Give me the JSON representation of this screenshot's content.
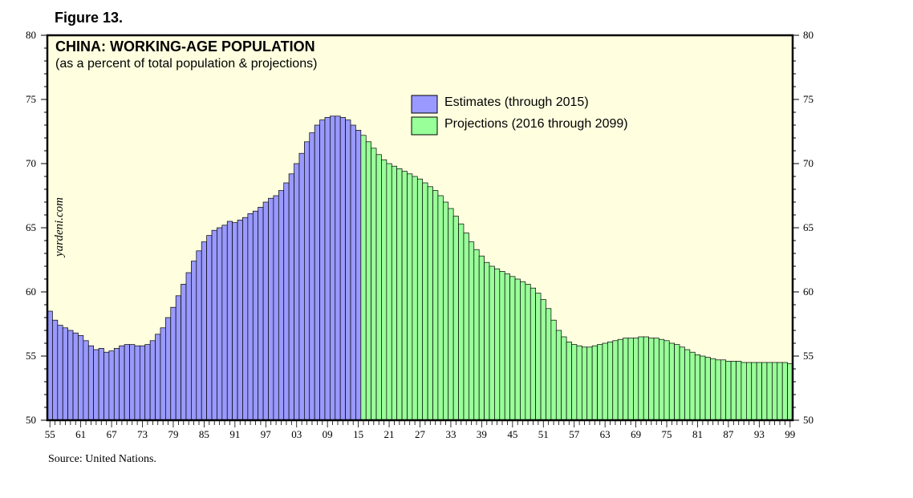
{
  "figure_label": "Figure 13.",
  "source_note": "Source: United Nations.",
  "watermark": "yardeni.com",
  "colors": {
    "background": "#ffffe0",
    "estimates": "#9999ff",
    "projections": "#99ff99",
    "bar_outline": "#000000"
  },
  "chart_data": {
    "type": "bar",
    "title": "CHINA: WORKING-AGE POPULATION",
    "subtitle": "(as a percent of total population & projections)",
    "ylim": [
      50,
      80
    ],
    "y_ticks": [
      50,
      55,
      60,
      65,
      70,
      75,
      80
    ],
    "x_range": [
      1955,
      2099
    ],
    "x_tick_labels": [
      "55",
      "61",
      "67",
      "73",
      "79",
      "85",
      "91",
      "97",
      "03",
      "09",
      "15",
      "21",
      "27",
      "33",
      "39",
      "45",
      "51",
      "57",
      "63",
      "69",
      "75",
      "81",
      "87",
      "93",
      "99"
    ],
    "legend_position": "top-center",
    "series": [
      {
        "name": "Estimates (through 2015)",
        "color": "#9999ff",
        "x": [
          1955,
          1956,
          1957,
          1958,
          1959,
          1960,
          1961,
          1962,
          1963,
          1964,
          1965,
          1966,
          1967,
          1968,
          1969,
          1970,
          1971,
          1972,
          1973,
          1974,
          1975,
          1976,
          1977,
          1978,
          1979,
          1980,
          1981,
          1982,
          1983,
          1984,
          1985,
          1986,
          1987,
          1988,
          1989,
          1990,
          1991,
          1992,
          1993,
          1994,
          1995,
          1996,
          1997,
          1998,
          1999,
          2000,
          2001,
          2002,
          2003,
          2004,
          2005,
          2006,
          2007,
          2008,
          2009,
          2010,
          2011,
          2012,
          2013,
          2014,
          2015
        ],
        "values": [
          58.5,
          57.8,
          57.4,
          57.2,
          57.0,
          56.8,
          56.6,
          56.2,
          55.8,
          55.5,
          55.6,
          55.3,
          55.4,
          55.6,
          55.8,
          55.9,
          55.9,
          55.8,
          55.8,
          55.9,
          56.2,
          56.7,
          57.2,
          58.0,
          58.8,
          59.7,
          60.6,
          61.5,
          62.4,
          63.2,
          63.9,
          64.4,
          64.8,
          65.0,
          65.2,
          65.5,
          65.4,
          65.6,
          65.8,
          66.1,
          66.3,
          66.6,
          67.0,
          67.3,
          67.5,
          67.9,
          68.5,
          69.2,
          70.0,
          70.8,
          71.7,
          72.4,
          73.0,
          73.4,
          73.6,
          73.7,
          73.7,
          73.6,
          73.4,
          73.0,
          72.6
        ],
        "stroke_on_right": "#9999ff"
      },
      {
        "name": "Projections (2016 through 2099)",
        "color": "#99ff99",
        "x": [
          2016,
          2017,
          2018,
          2019,
          2020,
          2021,
          2022,
          2023,
          2024,
          2025,
          2026,
          2027,
          2028,
          2029,
          2030,
          2031,
          2032,
          2033,
          2034,
          2035,
          2036,
          2037,
          2038,
          2039,
          2040,
          2041,
          2042,
          2043,
          2044,
          2045,
          2046,
          2047,
          2048,
          2049,
          2050,
          2051,
          2052,
          2053,
          2054,
          2055,
          2056,
          2057,
          2058,
          2059,
          2060,
          2061,
          2062,
          2063,
          2064,
          2065,
          2066,
          2067,
          2068,
          2069,
          2070,
          2071,
          2072,
          2073,
          2074,
          2075,
          2076,
          2077,
          2078,
          2079,
          2080,
          2081,
          2082,
          2083,
          2084,
          2085,
          2086,
          2087,
          2088,
          2089,
          2090,
          2091,
          2092,
          2093,
          2094,
          2095,
          2096,
          2097,
          2098,
          2099
        ],
        "values": [
          72.2,
          71.7,
          71.2,
          70.7,
          70.3,
          70.0,
          69.8,
          69.6,
          69.4,
          69.2,
          69.0,
          68.8,
          68.5,
          68.2,
          67.9,
          67.5,
          67.0,
          66.5,
          65.9,
          65.3,
          64.6,
          63.9,
          63.3,
          62.8,
          62.3,
          62.0,
          61.8,
          61.6,
          61.4,
          61.2,
          61.0,
          60.8,
          60.6,
          60.3,
          59.9,
          59.4,
          58.7,
          57.8,
          57.0,
          56.5,
          56.1,
          55.9,
          55.8,
          55.7,
          55.7,
          55.8,
          55.9,
          56.0,
          56.1,
          56.2,
          56.3,
          56.4,
          56.4,
          56.4,
          56.5,
          56.5,
          56.4,
          56.4,
          56.3,
          56.2,
          56.0,
          55.9,
          55.7,
          55.5,
          55.3,
          55.1,
          55.0,
          54.9,
          54.8,
          54.7,
          54.7,
          54.6,
          54.6,
          54.6,
          54.5,
          54.5,
          54.5,
          54.5,
          54.5,
          54.5,
          54.5,
          54.5,
          54.5,
          54.4
        ]
      }
    ]
  }
}
